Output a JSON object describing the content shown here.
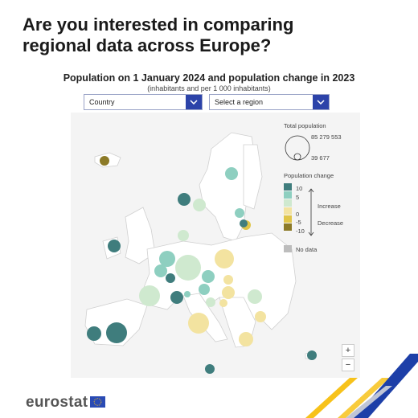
{
  "headline": "Are you interested in comparing regional data across Europe?",
  "chart": {
    "title": "Population on 1 January 2024 and population change in 2023",
    "subtitle": "(inhabitants and per 1 000 inhabitants)"
  },
  "controls": {
    "country_select": {
      "value": "Country"
    },
    "region_select": {
      "value": "Select a region"
    }
  },
  "legend": {
    "size_title": "Total population",
    "size_max": "85 279 553",
    "size_min": "39 677",
    "color_title": "Population change",
    "color_labels": [
      "10",
      "5",
      "0",
      "-5",
      "-10"
    ],
    "increase_label": "Increase",
    "decrease_label": "Decrease",
    "no_data_label": "No data",
    "color_scale": [
      "#3f7d7d",
      "#8ecfc0",
      "#cfe9cf",
      "#f3e3a0",
      "#e0c548",
      "#8c7a27"
    ],
    "no_data_color": "#bdbdbd"
  },
  "zoom": {
    "in_label": "+",
    "out_label": "−"
  },
  "footer": {
    "logo_text": "eurostat"
  },
  "colors": {
    "brand_blue": "#2c43a9",
    "stripe_yellow": "#f7c21a",
    "stripe_blue": "#1d3fa8"
  }
}
